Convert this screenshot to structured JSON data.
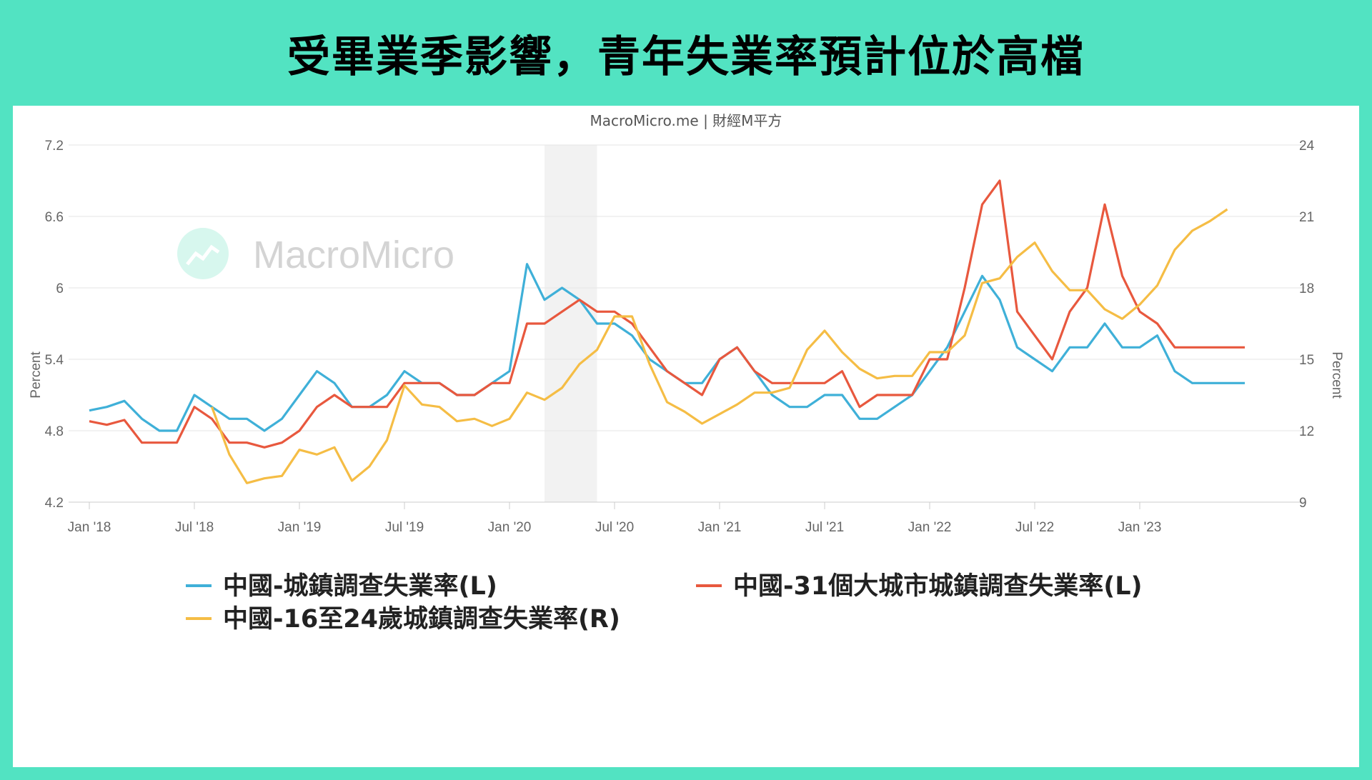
{
  "title": "受畢業季影響，青年失業率預計位於高檔",
  "credit": {
    "brand": "MacroMicro.me",
    "sep": "|",
    "name": "財經M平方"
  },
  "watermark": "MacroMicro",
  "colors": {
    "background": "#52e3c2",
    "urban": "#3fb0d8",
    "cities31": "#e8583e",
    "youth": "#f5bd45",
    "shade": "#f2f2f2",
    "grid": "#e6e6e6"
  },
  "chart_data": {
    "type": "line",
    "x_start": "2018-01",
    "x_tick_labels": [
      "Jan '18",
      "Jul '18",
      "Jan '19",
      "Jul '19",
      "Jan '20",
      "Jul '20",
      "Jan '21",
      "Jul '21",
      "Jan '22",
      "Jul '22",
      "Jan '23"
    ],
    "y_left": {
      "label": "Percent",
      "ticks": [
        "4.2",
        "4.8",
        "5.4",
        "6",
        "6.6",
        "7.2"
      ],
      "min": 4.2,
      "max": 7.2
    },
    "y_right": {
      "label": "Percent",
      "ticks": [
        "9",
        "12",
        "15",
        "18",
        "21",
        "24"
      ],
      "min": 9,
      "max": 24
    },
    "shaded_range": [
      "2020-03",
      "2020-06"
    ],
    "grid": true,
    "legend_position": "bottom",
    "series": [
      {
        "name": "中國-城鎮調查失業率(L)",
        "color_key": "urban",
        "axis": "left",
        "start": "2018-01",
        "values": [
          4.97,
          5.0,
          5.05,
          4.9,
          4.8,
          4.8,
          5.1,
          5.0,
          4.9,
          4.9,
          4.8,
          4.9,
          5.1,
          5.3,
          5.2,
          5.0,
          5.0,
          5.1,
          5.3,
          5.2,
          5.2,
          5.1,
          5.1,
          5.2,
          5.3,
          6.2,
          5.9,
          6.0,
          5.9,
          5.7,
          5.7,
          5.6,
          5.4,
          5.3,
          5.2,
          5.2,
          5.4,
          5.5,
          5.3,
          5.1,
          5.0,
          5.0,
          5.1,
          5.1,
          4.9,
          4.9,
          5.0,
          5.1,
          5.3,
          5.5,
          5.8,
          6.1,
          5.9,
          5.5,
          5.4,
          5.3,
          5.5,
          5.5,
          5.7,
          5.5,
          5.5,
          5.6,
          5.3,
          5.2,
          5.2,
          5.2,
          5.2
        ]
      },
      {
        "name": "中國-31個大城市城鎮調查失業率(L)",
        "color_key": "cities31",
        "axis": "left",
        "start": "2018-01",
        "values": [
          4.88,
          4.85,
          4.89,
          4.7,
          4.7,
          4.7,
          5.0,
          4.9,
          4.7,
          4.7,
          4.66,
          4.7,
          4.8,
          5.0,
          5.1,
          5.0,
          5.0,
          5.0,
          5.2,
          5.2,
          5.2,
          5.1,
          5.1,
          5.2,
          5.2,
          5.7,
          5.7,
          5.8,
          5.9,
          5.8,
          5.8,
          5.7,
          5.5,
          5.3,
          5.2,
          5.1,
          5.4,
          5.5,
          5.3,
          5.2,
          5.2,
          5.2,
          5.2,
          5.3,
          5.0,
          5.1,
          5.1,
          5.1,
          5.4,
          5.4,
          6.0,
          6.7,
          6.9,
          5.8,
          5.6,
          5.4,
          5.8,
          6.0,
          6.7,
          6.1,
          5.8,
          5.7,
          5.5,
          5.5,
          5.5,
          5.5,
          5.5
        ]
      },
      {
        "name": "中國-16至24歲城鎮調查失業率(R)",
        "color_key": "youth",
        "axis": "right",
        "start": "2018-01",
        "values": [
          null,
          null,
          null,
          null,
          null,
          null,
          null,
          13.0,
          11.0,
          9.8,
          10.0,
          10.1,
          11.2,
          11.0,
          11.3,
          9.9,
          10.5,
          11.6,
          13.9,
          13.1,
          13.0,
          12.4,
          12.5,
          12.2,
          12.5,
          13.6,
          13.3,
          13.8,
          14.8,
          15.4,
          16.8,
          16.8,
          14.8,
          13.2,
          12.8,
          12.3,
          12.7,
          13.1,
          13.6,
          13.6,
          13.8,
          15.4,
          16.2,
          15.3,
          14.6,
          14.2,
          14.3,
          14.3,
          15.3,
          15.3,
          16.0,
          18.2,
          18.4,
          19.3,
          19.9,
          18.7,
          17.9,
          17.9,
          17.1,
          16.7,
          17.3,
          18.1,
          19.6,
          20.4,
          20.8,
          21.3
        ]
      }
    ]
  }
}
